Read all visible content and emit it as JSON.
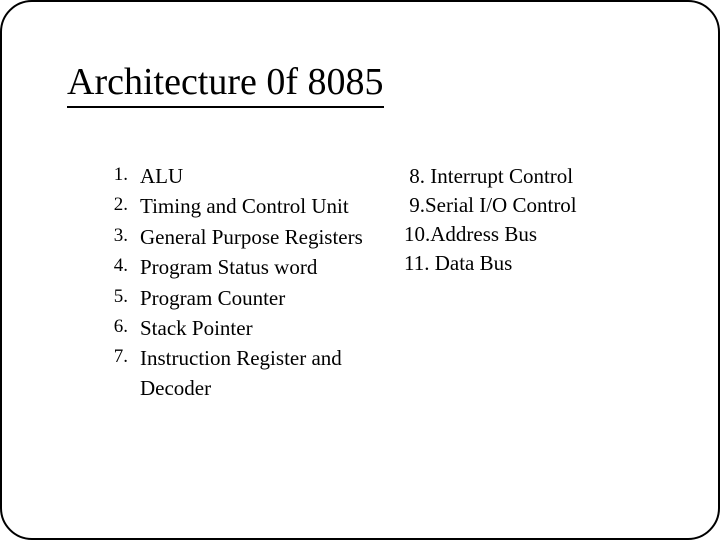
{
  "slide": {
    "title": "Architecture 0f 8085",
    "title_fontsize": 38,
    "title_color": "#000000",
    "title_underline_color": "#000000",
    "frame_border_color": "#000000",
    "frame_border_radius": 32,
    "background_color": "#ffffff",
    "body_fontsize": 21,
    "body_color": "#000000",
    "font_family": "Times New Roman",
    "left_items": [
      {
        "n": "1.",
        "text": "ALU"
      },
      {
        "n": "2.",
        "text": "Timing and Control Unit"
      },
      {
        "n": "3.",
        "text": "General Purpose Registers"
      },
      {
        "n": "4.",
        "text": "Program Status word"
      },
      {
        "n": "5.",
        "text": "Program Counter"
      },
      {
        "n": "6.",
        "text": "Stack Pointer"
      },
      {
        "n": "7.",
        "text": "Instruction Register and Decoder"
      }
    ],
    "right_items": [
      " 8. Interrupt Control",
      " 9.Serial I/O Control",
      "10.Address Bus",
      "11. Data Bus"
    ]
  }
}
